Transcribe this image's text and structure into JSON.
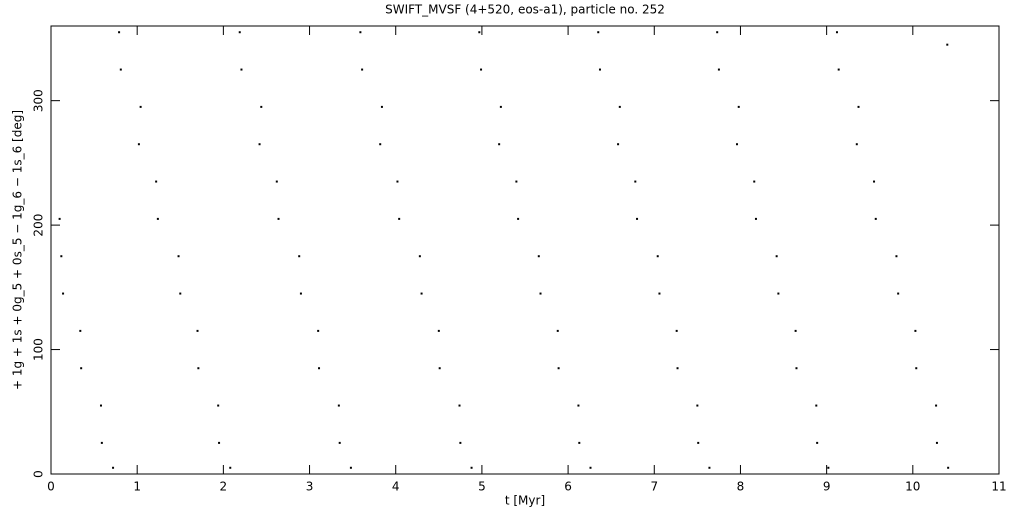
{
  "chart_data": {
    "type": "scatter",
    "title": "SWIFT_MVSF (4+520, eos-a1), particle no. 252",
    "x_label": "t [Myr]",
    "y_label": "+ 1g + 1s + 0g_5 + 0s_5 − 1g_6 − 1s_6 [deg]",
    "xlim": [
      0,
      11
    ],
    "ylim": [
      0,
      360
    ],
    "xticks": [
      0,
      1,
      2,
      3,
      4,
      5,
      6,
      7,
      8,
      9,
      10,
      11
    ],
    "yticks": [
      0,
      100,
      200,
      300
    ],
    "color": "#000000",
    "x": [
      0.1,
      0.12,
      0.14,
      0.34,
      0.35,
      0.58,
      0.59,
      0.72,
      0.79,
      0.81,
      1.04,
      1.02,
      1.22,
      1.24,
      1.48,
      1.5,
      1.7,
      1.71,
      1.94,
      1.95,
      2.08,
      2.19,
      2.21,
      2.44,
      2.42,
      2.62,
      2.64,
      2.88,
      2.9,
      3.1,
      3.11,
      3.34,
      3.35,
      3.48,
      3.59,
      3.61,
      3.84,
      3.82,
      4.02,
      4.04,
      4.28,
      4.3,
      4.5,
      4.51,
      4.74,
      4.75,
      4.88,
      4.97,
      4.99,
      5.22,
      5.2,
      5.4,
      5.42,
      5.66,
      5.68,
      5.88,
      5.89,
      6.12,
      6.13,
      6.26,
      6.35,
      6.37,
      6.6,
      6.58,
      6.78,
      6.8,
      7.04,
      7.06,
      7.26,
      7.27,
      7.5,
      7.51,
      7.64,
      7.73,
      7.75,
      7.98,
      7.96,
      8.16,
      8.18,
      8.42,
      8.44,
      8.64,
      8.65,
      8.88,
      8.89,
      9.02,
      9.12,
      9.14,
      9.37,
      9.35,
      9.55,
      9.57,
      9.81,
      9.83,
      10.03,
      10.04,
      10.27,
      10.28,
      10.41,
      10.4
    ],
    "y": [
      205,
      175,
      145,
      115,
      85,
      55,
      25,
      5,
      355,
      325,
      295,
      265,
      235,
      205,
      175,
      145,
      115,
      85,
      55,
      25,
      5,
      355,
      325,
      295,
      265,
      235,
      205,
      175,
      145,
      115,
      85,
      55,
      25,
      5,
      355,
      325,
      295,
      265,
      235,
      205,
      175,
      145,
      115,
      85,
      55,
      25,
      5,
      355,
      325,
      295,
      265,
      235,
      205,
      175,
      145,
      115,
      85,
      55,
      25,
      5,
      355,
      325,
      295,
      265,
      235,
      205,
      175,
      145,
      115,
      85,
      55,
      25,
      5,
      355,
      325,
      295,
      265,
      235,
      205,
      175,
      145,
      115,
      85,
      55,
      25,
      5,
      355,
      325,
      295,
      265,
      235,
      205,
      175,
      145,
      115,
      85,
      55,
      25,
      5,
      345
    ]
  }
}
